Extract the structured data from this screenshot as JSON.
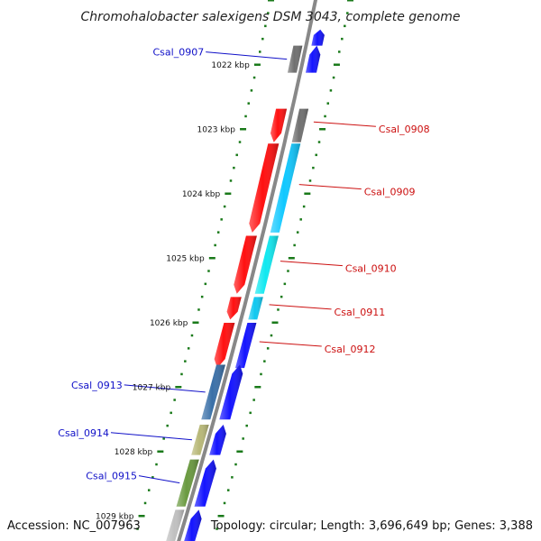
{
  "title": "Chromohalobacter salexigens DSM 3043, complete genome",
  "accession": "Accession: NC_007963",
  "summary": "Topology: circular; Length: 3,696,649 bp; Genes: 3,388",
  "colors": {
    "backbone": "#888888",
    "tick": "#1a7a1a",
    "forward_label": "#1010c8",
    "reverse_label": "#cc1010"
  },
  "ticks": [
    {
      "label": "1022 kbp",
      "kbp": 1022
    },
    {
      "label": "1023 kbp",
      "kbp": 1023
    },
    {
      "label": "1024 kbp",
      "kbp": 1024
    },
    {
      "label": "1025 kbp",
      "kbp": 1025
    },
    {
      "label": "1026 kbp",
      "kbp": 1026
    },
    {
      "label": "1027 kbp",
      "kbp": 1027
    },
    {
      "label": "1028 kbp",
      "kbp": 1028
    },
    {
      "label": "1029 kbp",
      "kbp": 1029
    }
  ],
  "genes": [
    {
      "name": "",
      "strand": "+",
      "start": 1021.45,
      "end": 1021.7,
      "color": "#1414ff"
    },
    {
      "name": "Csal_0907",
      "strand": "+",
      "start": 1021.7,
      "end": 1022.12,
      "color": "#1414ff",
      "mid_color": "#707070"
    },
    {
      "name": "Csal_0908",
      "strand": "-",
      "start": 1022.68,
      "end": 1023.2,
      "color": "#ff1010",
      "mid_color": "#707070"
    },
    {
      "name": "Csal_0909",
      "strand": "-",
      "start": 1023.22,
      "end": 1024.6,
      "color": "#ff1010",
      "mid_color": "#10c8ff"
    },
    {
      "name": "Csal_0910",
      "strand": "-",
      "start": 1024.65,
      "end": 1025.55,
      "color": "#ff1010",
      "mid_color": "#10e8f0"
    },
    {
      "name": "Csal_0911",
      "strand": "-",
      "start": 1025.6,
      "end": 1025.95,
      "color": "#ff1010",
      "mid_color": "#10c8f0"
    },
    {
      "name": "Csal_0912",
      "strand": "-",
      "start": 1026.0,
      "end": 1026.7,
      "color": "#ff1010",
      "mid_color": "#1414ff"
    },
    {
      "name": "Csal_0913",
      "strand": "+",
      "start": 1026.65,
      "end": 1027.5,
      "color": "#1414ff",
      "mid_color": "#3a70a8"
    },
    {
      "name": "Csal_0914",
      "strand": "+",
      "start": 1027.58,
      "end": 1028.05,
      "color": "#1414ff",
      "mid_color": "#b8b878"
    },
    {
      "name": "Csal_0915",
      "strand": "+",
      "start": 1028.12,
      "end": 1028.85,
      "color": "#1414ff",
      "mid_color": "#6a9a40"
    },
    {
      "name": "",
      "strand": "+",
      "start": 1028.9,
      "end": 1029.4,
      "color": "#1414ff",
      "mid_color": "#c0c0c0"
    }
  ]
}
